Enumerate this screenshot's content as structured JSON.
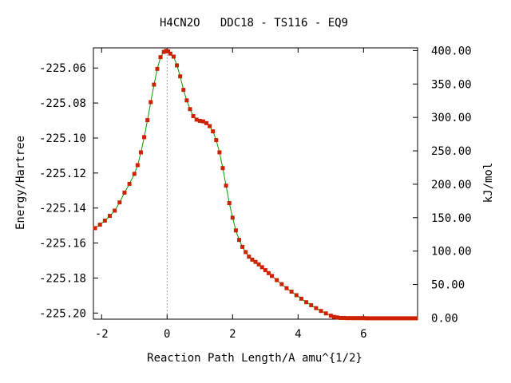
{
  "chart_data": {
    "type": "line",
    "title": "H4CN2O   DDC18 - TS116 - EQ9",
    "xlabel": "Reaction Path Length/A amu^{1/2}",
    "ylabel": "Energy/Hartree",
    "y2label": "kJ/mol",
    "xlim": [
      -2.25,
      7.65
    ],
    "ylim": [
      -225.2035,
      -225.0485
    ],
    "y2lim": [
      -1.9,
      404.1
    ],
    "x_ticks": [
      -2,
      0,
      2,
      4,
      6
    ],
    "x_tick_labels": [
      "-2",
      "0",
      "2",
      "4",
      "6"
    ],
    "y_ticks": [
      -225.06,
      -225.08,
      -225.1,
      -225.12,
      -225.14,
      -225.16,
      -225.18,
      -225.2
    ],
    "y_tick_labels": [
      "-225.06",
      "-225.08",
      "-225.10",
      "-225.12",
      "-225.14",
      "-225.16",
      "-225.18",
      "-225.20"
    ],
    "y2_ticks": [
      400,
      350,
      300,
      250,
      200,
      150,
      100,
      50,
      0
    ],
    "y2_tick_labels": [
      "400.00",
      "350.00",
      "300.00",
      "250.00",
      "200.00",
      "150.00",
      "100.00",
      "50.00",
      "0.00"
    ],
    "reference_line_x": 0,
    "grid": false,
    "legend": "none",
    "series": [
      {
        "line_color": "#00a000",
        "marker_color": "#cc2200",
        "x": [
          -2.2,
          -2.05,
          -1.9,
          -1.75,
          -1.6,
          -1.45,
          -1.3,
          -1.15,
          -1.0,
          -0.9,
          -0.8,
          -0.7,
          -0.6,
          -0.5,
          -0.4,
          -0.3,
          -0.2,
          -0.1,
          -0.03,
          0.03,
          0.1,
          0.2,
          0.3,
          0.4,
          0.5,
          0.6,
          0.7,
          0.8,
          0.9,
          1.0,
          1.1,
          1.2,
          1.3,
          1.4,
          1.5,
          1.6,
          1.7,
          1.8,
          1.9,
          2.0,
          2.1,
          2.2,
          2.3,
          2.4,
          2.5,
          2.6,
          2.7,
          2.8,
          2.9,
          3.0,
          3.1,
          3.2,
          3.35,
          3.5,
          3.65,
          3.8,
          3.95,
          4.1,
          4.25,
          4.4,
          4.55,
          4.7,
          4.85,
          5.0,
          5.1,
          5.2,
          5.3,
          5.4,
          5.5,
          5.6,
          5.7,
          5.8,
          5.9,
          6.0,
          6.1,
          6.2,
          6.3,
          6.4,
          6.5,
          6.6,
          6.7,
          6.8,
          6.9,
          7.0,
          7.1,
          7.2,
          7.3,
          7.4,
          7.5,
          7.6
        ],
        "y": [
          -225.1515,
          -225.1495,
          -225.1472,
          -225.1445,
          -225.1415,
          -225.1368,
          -225.1312,
          -225.1262,
          -225.1205,
          -225.1155,
          -225.1082,
          -225.0995,
          -225.0898,
          -225.0795,
          -225.0695,
          -225.0605,
          -225.0538,
          -225.0508,
          -225.0502,
          -225.0505,
          -225.0518,
          -225.0535,
          -225.0585,
          -225.0648,
          -225.0725,
          -225.0785,
          -225.0835,
          -225.0875,
          -225.0895,
          -225.0902,
          -225.0905,
          -225.0915,
          -225.0932,
          -225.0962,
          -225.1012,
          -225.1082,
          -225.1172,
          -225.1272,
          -225.1372,
          -225.1455,
          -225.1528,
          -225.1582,
          -225.1622,
          -225.1652,
          -225.1678,
          -225.1695,
          -225.1708,
          -225.1722,
          -225.1738,
          -225.1755,
          -225.1772,
          -225.1788,
          -225.1812,
          -225.1835,
          -225.1858,
          -225.1878,
          -225.1898,
          -225.1918,
          -225.1938,
          -225.1955,
          -225.1972,
          -225.1988,
          -225.2002,
          -225.2015,
          -225.2022,
          -225.2025,
          -225.2028,
          -225.2028,
          -225.2029,
          -225.2029,
          -225.2029,
          -225.2029,
          -225.2029,
          -225.2029,
          -225.203,
          -225.203,
          -225.203,
          -225.203,
          -225.203,
          -225.203,
          -225.203,
          -225.203,
          -225.203,
          -225.203,
          -225.203,
          -225.203,
          -225.203,
          -225.203,
          -225.203,
          -225.203
        ]
      }
    ]
  }
}
